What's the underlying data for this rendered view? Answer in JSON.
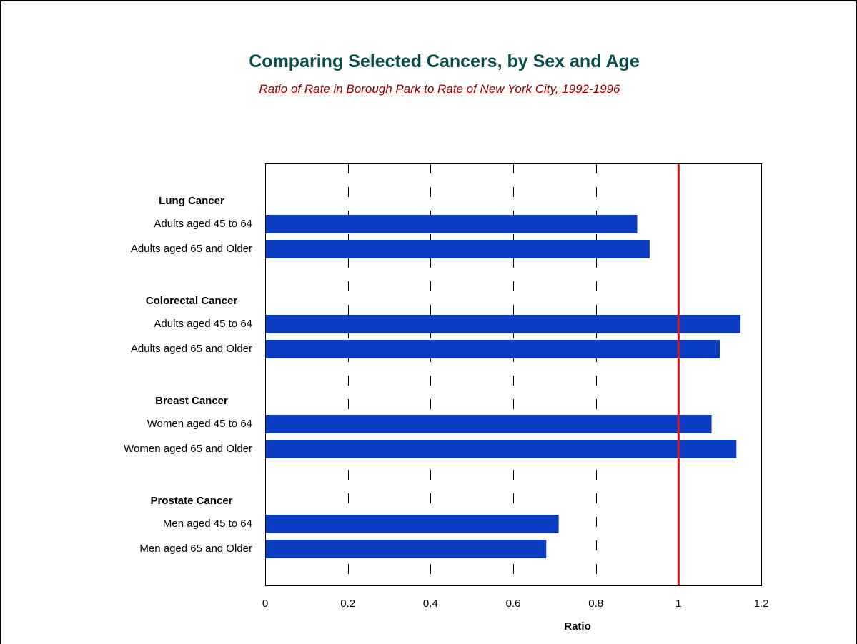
{
  "chart_data": {
    "type": "bar",
    "orientation": "horizontal",
    "title": "Comparing Selected Cancers, by Sex and Age",
    "subtitle": "Ratio of Rate in Borough Park  to Rate of New York City, 1992-1996",
    "xlabel": "Ratio",
    "xlim": [
      0,
      1.2
    ],
    "xticks": [
      0,
      0.2,
      0.4,
      0.6,
      0.8,
      1,
      1.2
    ],
    "xtick_labels": [
      "0",
      "0.2",
      "0.4",
      "0.6",
      "0.8",
      "1",
      "1.2"
    ],
    "grid": "vertical dashed",
    "reference_line": {
      "value": 1,
      "color": "#e01414"
    },
    "bar_color": "#0a3cc1",
    "groups": [
      {
        "name": "Lung Cancer",
        "bars": [
          {
            "label": "Adults aged 45 to 64",
            "value": 0.9
          },
          {
            "label": "Adults aged 65 and Older",
            "value": 0.93
          }
        ]
      },
      {
        "name": "Colorectal Cancer",
        "bars": [
          {
            "label": "Adults aged 45 to 64",
            "value": 1.15
          },
          {
            "label": "Adults aged 65 and Older",
            "value": 1.1
          }
        ]
      },
      {
        "name": "Breast Cancer",
        "bars": [
          {
            "label": "Women aged 45 to 64",
            "value": 1.08
          },
          {
            "label": "Women aged 65 and Older",
            "value": 1.14
          }
        ]
      },
      {
        "name": "Prostate Cancer",
        "bars": [
          {
            "label": "Men aged 45 to 64",
            "value": 0.71
          },
          {
            "label": "Men aged 65 and Older",
            "value": 0.68
          }
        ]
      }
    ]
  }
}
